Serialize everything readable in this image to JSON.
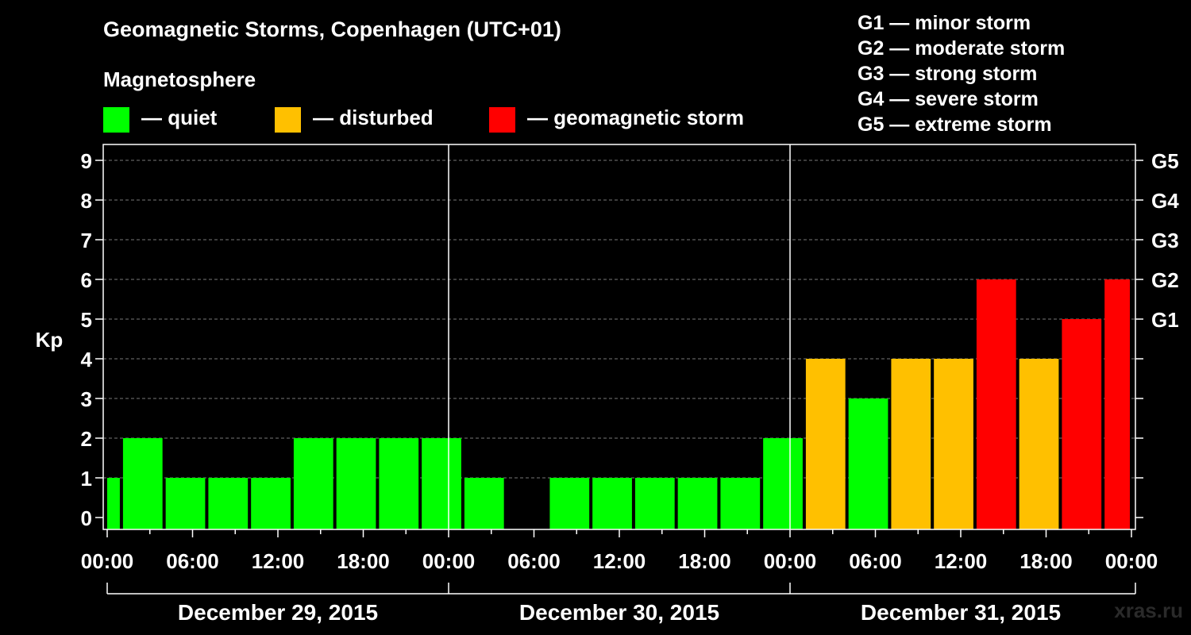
{
  "header": {
    "title": "Geomagnetic Storms, Copenhagen (UTC+01)",
    "magnetosphere_title": "Magnetosphere"
  },
  "legend": [
    {
      "label": "— quiet",
      "color": "#00ff00"
    },
    {
      "label": "— disturbed",
      "color": "#ffc000"
    },
    {
      "label": "— geomagnetic storm",
      "color": "#ff0000"
    }
  ],
  "storm_scale": [
    "G1 — minor storm",
    "G2 — moderate storm",
    "G3 — strong storm",
    "G4 — severe storm",
    "G5 — extreme storm"
  ],
  "watermark": "xras.ru",
  "chart_data": {
    "type": "bar",
    "ylabel": "Kp",
    "ylim": [
      0,
      9
    ],
    "yticks": [
      "0",
      "1",
      "2",
      "3",
      "4",
      "5",
      "6",
      "7",
      "8",
      "9"
    ],
    "right_ticks": [
      {
        "kp": 5,
        "label": "G1"
      },
      {
        "kp": 6,
        "label": "G2"
      },
      {
        "kp": 7,
        "label": "G3"
      },
      {
        "kp": 8,
        "label": "G4"
      },
      {
        "kp": 9,
        "label": "G5"
      }
    ],
    "x_tick_labels": [
      "00:00",
      "06:00",
      "12:00",
      "18:00",
      "00:00",
      "06:00",
      "12:00",
      "18:00",
      "00:00",
      "06:00",
      "12:00",
      "18:00",
      "00:00"
    ],
    "days": [
      "December 29, 2015",
      "December 30, 2015",
      "December 31, 2015"
    ],
    "hours_total": 72,
    "grid": "dashed horizontal at each Kp level",
    "bars": [
      {
        "start": 0,
        "end": 1,
        "kp": 1,
        "status": "quiet"
      },
      {
        "start": 1,
        "end": 4,
        "kp": 2,
        "status": "quiet"
      },
      {
        "start": 4,
        "end": 7,
        "kp": 1,
        "status": "quiet"
      },
      {
        "start": 7,
        "end": 10,
        "kp": 1,
        "status": "quiet"
      },
      {
        "start": 10,
        "end": 13,
        "kp": 1,
        "status": "quiet"
      },
      {
        "start": 13,
        "end": 16,
        "kp": 2,
        "status": "quiet"
      },
      {
        "start": 16,
        "end": 19,
        "kp": 2,
        "status": "quiet"
      },
      {
        "start": 19,
        "end": 22,
        "kp": 2,
        "status": "quiet"
      },
      {
        "start": 22,
        "end": 25,
        "kp": 2,
        "status": "quiet"
      },
      {
        "start": 25,
        "end": 28,
        "kp": 1,
        "status": "quiet"
      },
      {
        "start": 28,
        "end": 31,
        "kp": 0,
        "status": "quiet"
      },
      {
        "start": 31,
        "end": 34,
        "kp": 1,
        "status": "quiet"
      },
      {
        "start": 34,
        "end": 37,
        "kp": 1,
        "status": "quiet"
      },
      {
        "start": 37,
        "end": 40,
        "kp": 1,
        "status": "quiet"
      },
      {
        "start": 40,
        "end": 43,
        "kp": 1,
        "status": "quiet"
      },
      {
        "start": 43,
        "end": 46,
        "kp": 1,
        "status": "quiet"
      },
      {
        "start": 46,
        "end": 49,
        "kp": 2,
        "status": "quiet"
      },
      {
        "start": 49,
        "end": 52,
        "kp": 4,
        "status": "disturbed"
      },
      {
        "start": 52,
        "end": 55,
        "kp": 3,
        "status": "quiet"
      },
      {
        "start": 55,
        "end": 58,
        "kp": 4,
        "status": "disturbed"
      },
      {
        "start": 58,
        "end": 61,
        "kp": 4,
        "status": "disturbed"
      },
      {
        "start": 61,
        "end": 64,
        "kp": 6,
        "status": "storm"
      },
      {
        "start": 64,
        "end": 67,
        "kp": 4,
        "status": "disturbed"
      },
      {
        "start": 67,
        "end": 70,
        "kp": 5,
        "status": "storm"
      },
      {
        "start": 70,
        "end": 72,
        "kp": 6,
        "status": "storm"
      }
    ]
  }
}
